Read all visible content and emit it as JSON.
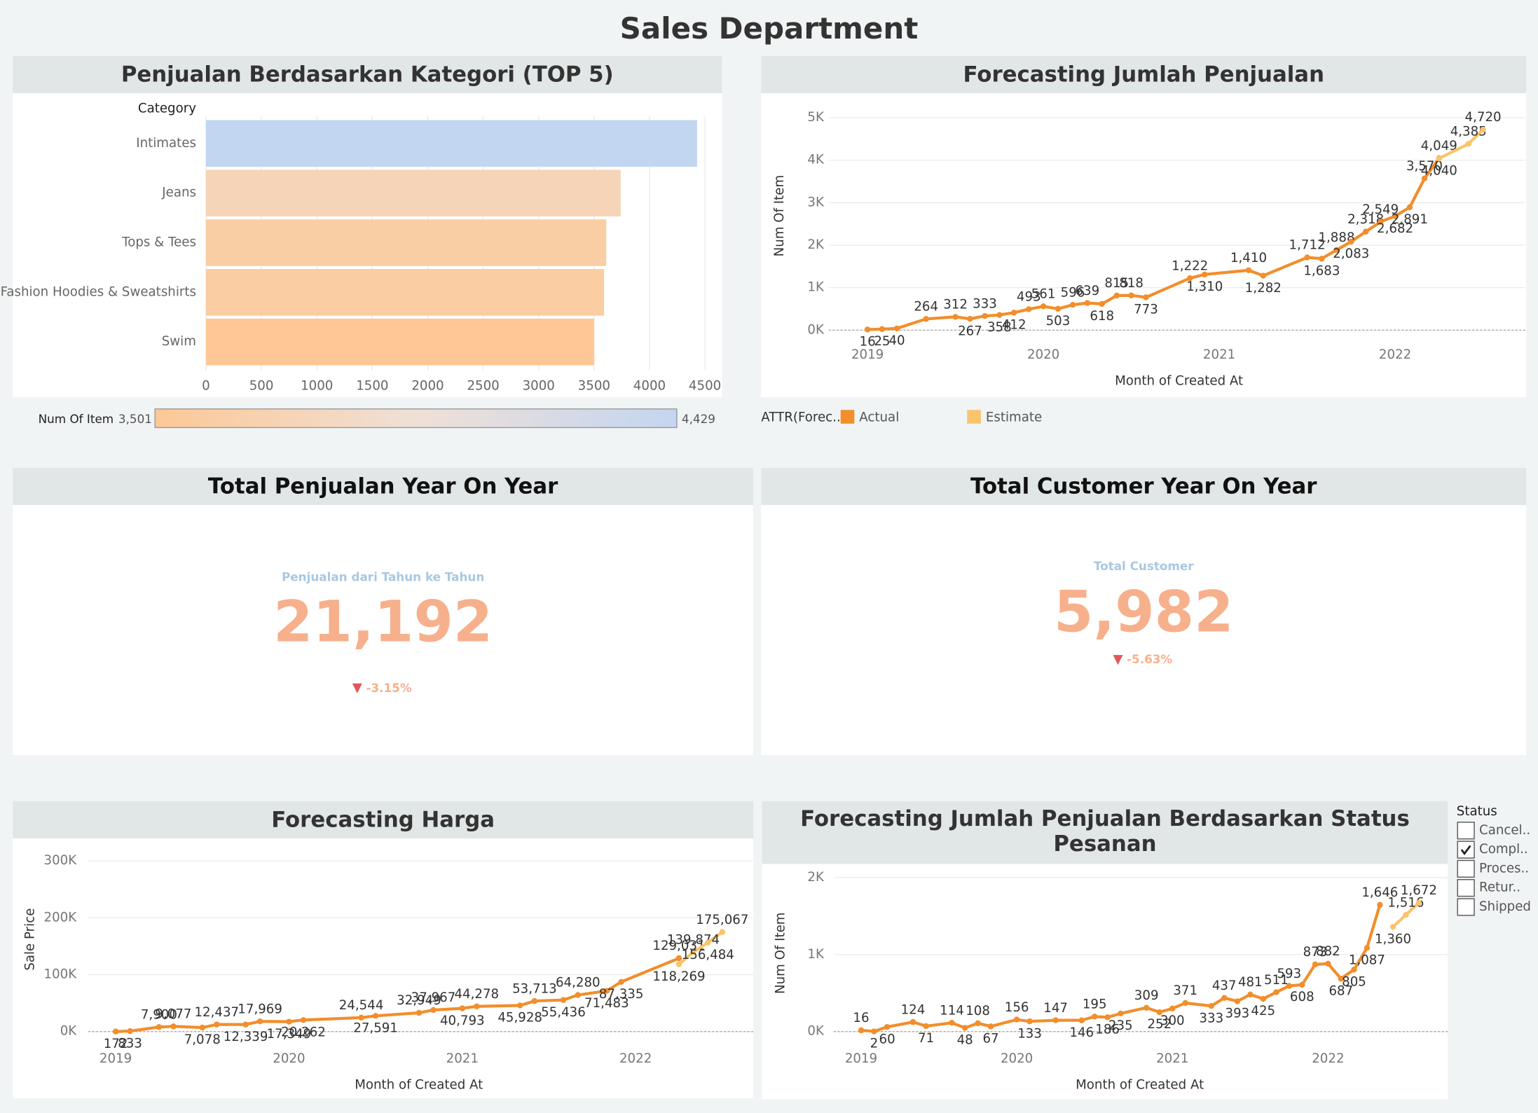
{
  "title": "Sales Department",
  "chart_data": [
    {
      "type": "bar",
      "title": "Penjualan Berdasarkan Kategori (TOP 5)",
      "y_label": "Category",
      "categories": [
        "Intimates",
        "Jeans",
        "Tops & Tees",
        "Fashion Hoodies & Sweatshirts",
        "Swim"
      ],
      "values": [
        4429,
        3740,
        3610,
        3590,
        3501
      ],
      "xlim": [
        0,
        4600
      ],
      "xticks": [
        0,
        500,
        1000,
        1500,
        2000,
        2500,
        3000,
        3500,
        4000,
        4500
      ],
      "grid": true,
      "color_scale": {
        "title": "Num Of Item",
        "min": {
          "value": 3501,
          "label": "3,501"
        },
        "max": {
          "value": 4429,
          "label": "4,429"
        },
        "colors": [
          "#fdc896",
          "#efe0d6",
          "#c3d6f1"
        ]
      }
    },
    {
      "type": "line",
      "title": "Forecasting Jumlah Penjualan",
      "x_label": "Month of Created At",
      "y_label": "Num Of Item",
      "legend_title": "ATTR(Forec..",
      "xlim": [
        2018.78,
        2022.74
      ],
      "xticks": [
        2019,
        2020,
        2021,
        2022
      ],
      "ylim": [
        -100,
        5000
      ],
      "yticks": [
        {
          "value": 0,
          "label": "0K"
        },
        {
          "value": 1000,
          "label": "1K"
        },
        {
          "value": 2000,
          "label": "2K"
        },
        {
          "value": 3000,
          "label": "3K"
        },
        {
          "value": 4000,
          "label": "4K"
        },
        {
          "value": 5000,
          "label": "5K"
        }
      ],
      "grid": true,
      "series": [
        {
          "name": "Actual",
          "color": "#f28e2b",
          "x": [
            2019,
            2019.083,
            2019.167,
            2019.333,
            2019.5,
            2019.583,
            2019.667,
            2019.75,
            2019.833,
            2019.917,
            2020,
            2020.083,
            2020.167,
            2020.25,
            2020.333,
            2020.417,
            2020.5,
            2020.583,
            2020.833,
            2020.917,
            2021.167,
            2021.25,
            2021.5,
            2021.583,
            2021.667,
            2021.75,
            2021.833,
            2021.917,
            2022,
            2022.083,
            2022.167,
            2022.25
          ],
          "values": [
            16,
            25,
            40,
            264,
            312,
            267,
            333,
            358,
            412,
            493,
            561,
            503,
            596,
            639,
            618,
            815,
            818,
            773,
            1222,
            1310,
            1410,
            1282,
            1712,
            1683,
            1888,
            2083,
            2318,
            2549,
            2682,
            2891,
            3570,
            4049
          ],
          "value_labels": [
            "16",
            "25",
            "40",
            "264",
            "312",
            "267",
            "333",
            "358",
            "412",
            "493",
            "561",
            "503",
            "596",
            "639",
            "618",
            "815",
            "818",
            "773",
            "1,222",
            "1,310",
            "1,410",
            "1,282",
            "1,712",
            "1,683",
            "1,888",
            "2,083",
            "2,318",
            "2,549",
            "2,682",
            "2,891",
            "3,570",
            "4,049"
          ]
        },
        {
          "name": "Estimate",
          "color": "#f9c46b",
          "x": [
            2022.25,
            2022.417,
            2022.5
          ],
          "values": [
            4040,
            4385,
            4720
          ],
          "value_labels": [
            "4,040",
            "4,385",
            "4,720"
          ]
        }
      ]
    },
    {
      "type": "line",
      "title": "Forecasting Harga",
      "x_label": "Month of Created At",
      "y_label": "Sale Price",
      "xlim": [
        2018.842,
        2022.679
      ],
      "xticks": [
        2019,
        2020,
        2021,
        2022
      ],
      "ylim": [
        0,
        300000
      ],
      "yticks": [
        {
          "value": 0,
          "label": "0K"
        },
        {
          "value": 100000,
          "label": "100K"
        },
        {
          "value": 200000,
          "label": "200K"
        },
        {
          "value": 300000,
          "label": "300K"
        }
      ],
      "grid": true,
      "series": [
        {
          "color": "#f28e2b",
          "x": [
            2019,
            2019.083,
            2019.25,
            2019.333,
            2019.5,
            2019.583,
            2019.75,
            2019.833,
            2020,
            2020.083,
            2020.417,
            2020.5,
            2020.75,
            2020.833,
            2021,
            2021.083,
            2021.333,
            2021.417,
            2021.583,
            2021.667,
            2021.833,
            2021.917,
            2022.25
          ],
          "values": [
            172,
            833,
            7900,
            9077,
            7078,
            12437,
            12339,
            17969,
            17349,
            20262,
            24544,
            27591,
            32949,
            37967,
            40793,
            44278,
            45928,
            53713,
            55436,
            64280,
            71483,
            87335,
            129031
          ],
          "value_labels": [
            "172",
            "833",
            "7,900",
            "9,077",
            "7,078",
            "12,437",
            "12,339",
            "17,969",
            "17,349",
            "20,262",
            "24,544",
            "27,591",
            "32,949",
            "37,967",
            "40,793",
            "44,278",
            "45,928",
            "53,713",
            "55,436",
            "64,280",
            "71,483",
            "87,335",
            "129,031"
          ]
        },
        {
          "color": "#f9c46b",
          "x": [
            2022.25,
            2022.333,
            2022.417,
            2022.5
          ],
          "values": [
            118269,
            139874,
            156484,
            175067
          ],
          "value_labels": [
            "118,269",
            "139,874",
            "156,484",
            "175,067"
          ]
        }
      ]
    },
    {
      "type": "line",
      "title": "Forecasting Jumlah Penjualan Berdasarkan Status Pesanan",
      "x_label": "Month of Created At",
      "y_label": "Num Of Item",
      "xlim": [
        2018.824,
        2022.769
      ],
      "xticks": [
        2019,
        2020,
        2021,
        2022
      ],
      "ylim": [
        0,
        2000
      ],
      "yticks": [
        {
          "value": 0,
          "label": "0K"
        },
        {
          "value": 1000,
          "label": "1K"
        },
        {
          "value": 2000,
          "label": "2K"
        }
      ],
      "grid": true,
      "series": [
        {
          "color": "#f28e2b",
          "x": [
            2019,
            2019.083,
            2019.167,
            2019.333,
            2019.417,
            2019.583,
            2019.667,
            2019.75,
            2019.833,
            2020,
            2020.083,
            2020.25,
            2020.417,
            2020.5,
            2020.583,
            2020.667,
            2020.833,
            2020.917,
            2021,
            2021.083,
            2021.25,
            2021.333,
            2021.417,
            2021.5,
            2021.583,
            2021.667,
            2021.75,
            2021.833,
            2021.917,
            2022,
            2022.083,
            2022.167,
            2022.25,
            2022.333
          ],
          "values": [
            16,
            2,
            60,
            124,
            71,
            114,
            48,
            108,
            67,
            156,
            133,
            147,
            146,
            195,
            186,
            235,
            309,
            252,
            300,
            371,
            333,
            437,
            393,
            481,
            425,
            511,
            593,
            608,
            873,
            882,
            687,
            805,
            1087,
            1646
          ],
          "value_labels": [
            "16",
            "2",
            "60",
            "124",
            "71",
            "114",
            "48",
            "108",
            "67",
            "156",
            "133",
            "147",
            "146",
            "195",
            "186",
            "235",
            "309",
            "252",
            "300",
            "371",
            "333",
            "437",
            "393",
            "481",
            "425",
            "511",
            "593",
            "608",
            "873",
            "882",
            "687",
            "805",
            "1,087",
            "1,646"
          ]
        },
        {
          "color": "#f9c46b",
          "x": [
            2022.417,
            2022.5,
            2022.583
          ],
          "values": [
            1360,
            1516,
            1672
          ],
          "value_labels": [
            "1,360",
            "1,516",
            "1,672"
          ]
        }
      ]
    }
  ],
  "kpis": [
    {
      "title": "Total Penjualan Year On Year",
      "label": "Penjualan dari Tahun ke Tahun",
      "value": "21,192",
      "change": "-3.15%"
    },
    {
      "title": "Total Customer Year On Year",
      "label": "Total Customer",
      "value": "5,982",
      "change": "-5.63%"
    }
  ],
  "status_filter": {
    "title": "Status",
    "options": [
      {
        "label": "Cancel..",
        "checked": false
      },
      {
        "label": "Compl..",
        "checked": true
      },
      {
        "label": "Proces..",
        "checked": false
      },
      {
        "label": "Retur..",
        "checked": false
      },
      {
        "label": "Shipped",
        "checked": false
      }
    ]
  }
}
